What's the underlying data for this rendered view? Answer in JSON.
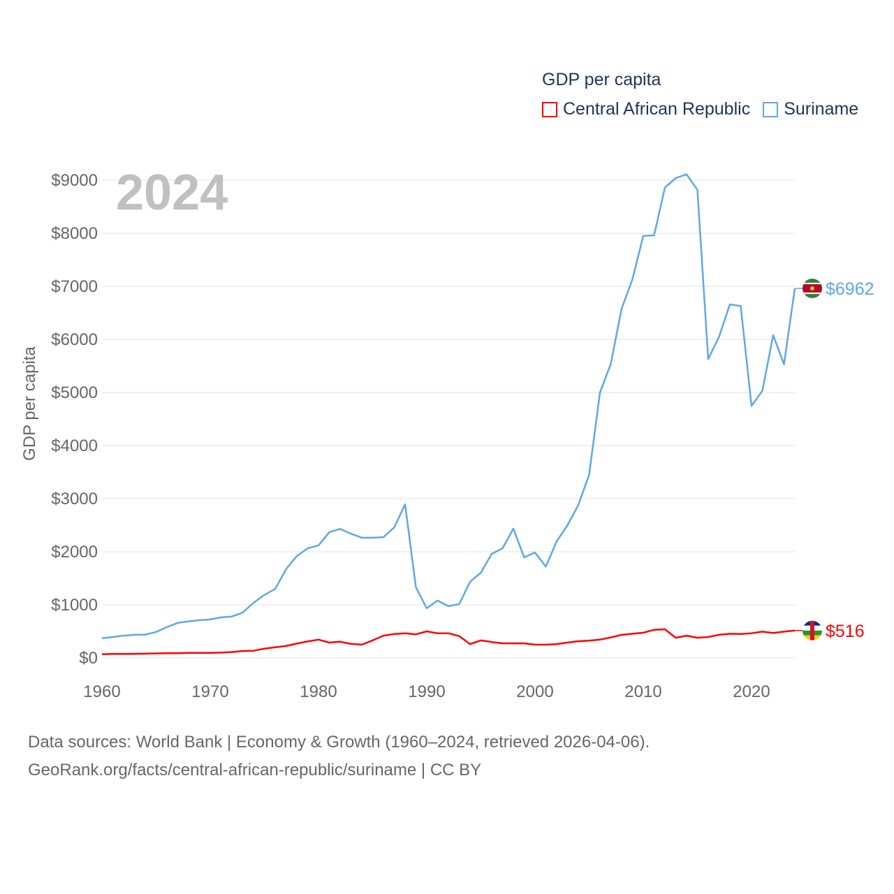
{
  "chart_data": {
    "type": "line",
    "title": "GDP per capita",
    "year_label": "2024",
    "ylabel": "GDP per capita",
    "xlabel": "",
    "xlim": [
      1960,
      2024
    ],
    "ylim": [
      0,
      9000
    ],
    "x_ticks": [
      1960,
      1970,
      1980,
      1990,
      2000,
      2010,
      2020
    ],
    "y_ticks": [
      "$0",
      "$1000",
      "$2000",
      "$3000",
      "$4000",
      "$5000",
      "$6000",
      "$7000",
      "$8000",
      "$9000"
    ],
    "y_tick_values": [
      0,
      1000,
      2000,
      3000,
      4000,
      5000,
      6000,
      7000,
      8000,
      9000
    ],
    "grid": true,
    "legend_position": "top-right",
    "series": [
      {
        "name": "Central African Republic",
        "color": "#ff0000",
        "end_label": "$516",
        "x_start": 1960,
        "values": [
          70,
          75,
          75,
          78,
          80,
          85,
          88,
          90,
          95,
          95,
          95,
          100,
          110,
          130,
          135,
          175,
          200,
          225,
          270,
          310,
          345,
          290,
          305,
          265,
          250,
          330,
          420,
          450,
          465,
          445,
          500,
          465,
          465,
          410,
          260,
          330,
          300,
          275,
          275,
          275,
          250,
          250,
          260,
          290,
          315,
          325,
          345,
          385,
          435,
          455,
          475,
          530,
          540,
          380,
          420,
          380,
          395,
          435,
          455,
          450,
          465,
          495,
          470,
          495,
          516
        ]
      },
      {
        "name": "Suriname",
        "color": "#5fa6e8",
        "end_label": "$6962",
        "x_start": 1960,
        "values": [
          370,
          395,
          420,
          435,
          440,
          490,
          580,
          660,
          690,
          710,
          725,
          765,
          780,
          855,
          1040,
          1185,
          1300,
          1670,
          1920,
          2065,
          2120,
          2370,
          2430,
          2340,
          2265,
          2265,
          2275,
          2460,
          2895,
          1330,
          935,
          1080,
          975,
          1015,
          1435,
          1605,
          1960,
          2065,
          2435,
          1895,
          1985,
          1720,
          2195,
          2500,
          2880,
          3450,
          5000,
          5540,
          6580,
          7130,
          7950,
          7960,
          8860,
          9040,
          9110,
          8820,
          5630,
          6050,
          6660,
          6630,
          4750,
          5030,
          6080,
          5530,
          6962
        ]
      }
    ]
  },
  "source": {
    "line1": "Data sources: World Bank | Economy & Growth (1960–2024, retrieved 2026-04-06).",
    "line2": "GeoRank.org/facts/central-african-republic/suriname | CC BY"
  }
}
